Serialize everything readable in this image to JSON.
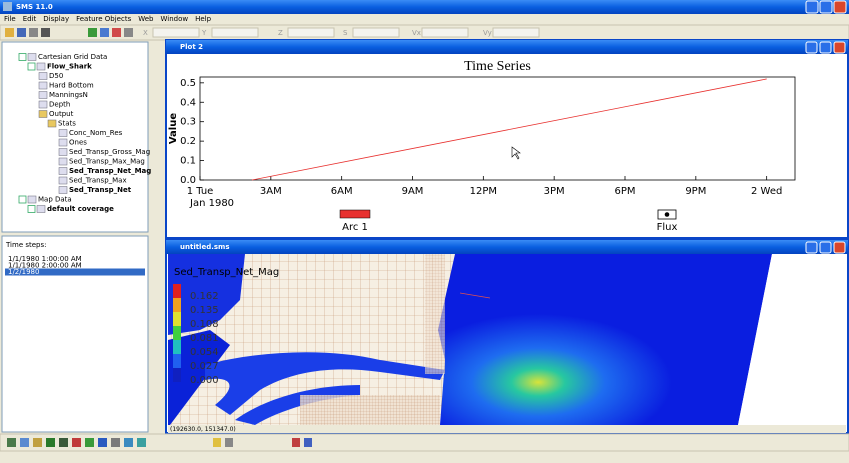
{
  "window": {
    "title": "SMS 11.0",
    "menu": [
      "File",
      "Edit",
      "Display",
      "Feature Objects",
      "Web",
      "Window",
      "Help"
    ],
    "coord_fields": [
      "X",
      "Y",
      "Z",
      "S",
      "Vx",
      "Vy"
    ]
  },
  "tree": [
    {
      "label": "Cartesian Grid Data",
      "level": 0
    },
    {
      "label": "Flow_Shark",
      "level": 1,
      "bold": true
    },
    {
      "label": "D50",
      "level": 2
    },
    {
      "label": "Hard Bottom",
      "level": 2
    },
    {
      "label": "ManningsN",
      "level": 2
    },
    {
      "label": "Depth",
      "level": 2
    },
    {
      "label": "Output",
      "level": 2
    },
    {
      "label": "Stats",
      "level": 3
    },
    {
      "label": "Conc_Nom_Res",
      "level": 4
    },
    {
      "label": "Ones",
      "level": 4
    },
    {
      "label": "Sed_Transp_Gross_Mag",
      "level": 4
    },
    {
      "label": "Sed_Transp_Max_Mag",
      "level": 4
    },
    {
      "label": "Sed_Transp_Net_Mag",
      "level": 4,
      "bold": true
    },
    {
      "label": "Sed_Transp_Max",
      "level": 4
    },
    {
      "label": "Sed_Transp_Net",
      "level": 4,
      "bold": true
    },
    {
      "label": "Map Data",
      "level": 0
    },
    {
      "label": "default coverage",
      "level": 1,
      "bold": true
    }
  ],
  "time_steps": {
    "label": "Time steps:",
    "items": [
      "1/1/1980 1:00:00 AM",
      "1/1/1980 2:00:00 AM",
      "1/2/1980"
    ],
    "selected": 2
  },
  "plot_window": {
    "title": "Plot 2",
    "chart": {
      "type": "line",
      "title": "Time Series",
      "ylabel": "Value",
      "x_sublabel": "Jan 1980",
      "xlim": [
        0,
        25.2
      ],
      "xticks": [
        {
          "value": 0,
          "label": "1 Tue"
        },
        {
          "value": 3,
          "label": "3AM"
        },
        {
          "value": 6,
          "label": "6AM"
        },
        {
          "value": 9,
          "label": "9AM"
        },
        {
          "value": 12,
          "label": "12PM"
        },
        {
          "value": 15,
          "label": "3PM"
        },
        {
          "value": 18,
          "label": "6PM"
        },
        {
          "value": 21,
          "label": "9PM"
        },
        {
          "value": 24,
          "label": "2 Wed"
        }
      ],
      "ylim": [
        0,
        0.53
      ],
      "yticks": [
        {
          "value": 0,
          "label": "0.0"
        },
        0.1,
        0.2,
        0.3,
        0.4,
        0.5
      ],
      "x": [
        2.2,
        24
      ],
      "series": [
        {
          "name": "Arc 1",
          "color": "#e8312f",
          "values": [
            0,
            0.52
          ]
        }
      ],
      "legend_extra": "Flux"
    }
  },
  "map_window": {
    "title": "untitled.sms",
    "legend_title": "Sed_Transp_Net_Mag",
    "legend_labels": [
      "0.162",
      "0.135",
      "0.108",
      "0.081",
      "0.054",
      "0.027",
      "0.000"
    ],
    "status": "(192630.0, 151347.0)"
  }
}
